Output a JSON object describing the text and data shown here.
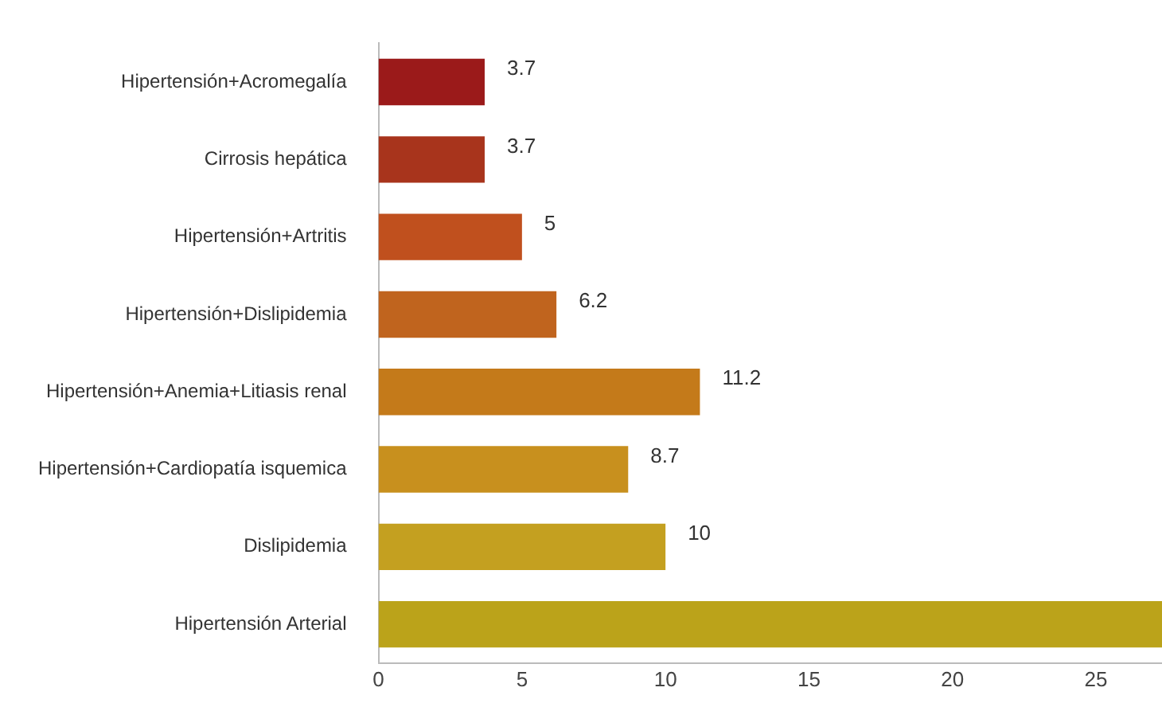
{
  "chart_data": {
    "type": "bar",
    "orientation": "horizontal",
    "categories": [
      "Hipertensión+Acromegalía",
      "Cirrosis hepática",
      "Hipertensión+Artritis",
      "Hipertensión+Dislipidemia",
      "Hipertensión+Anemia+Litiasis renal",
      "Hipertensión+Cardiopatía isquemica",
      "Dislipidemia",
      "Hipertensión Arterial"
    ],
    "values": [
      3.7,
      3.7,
      5,
      6.2,
      11.2,
      8.7,
      10,
      27.3
    ],
    "colors": [
      "#9b1a1a",
      "#a8341c",
      "#c0501e",
      "#c0641e",
      "#c47a1a",
      "#c8901e",
      "#c4a020",
      "#bba31a"
    ],
    "value_labels": [
      "3.7",
      "3.7",
      "5",
      "6.2",
      "11.2",
      "8.7",
      "10",
      null
    ],
    "xlim": [
      0,
      27.3
    ],
    "xticks": [
      0,
      5,
      10,
      15,
      20,
      25
    ],
    "grid": false,
    "legend": false
  }
}
